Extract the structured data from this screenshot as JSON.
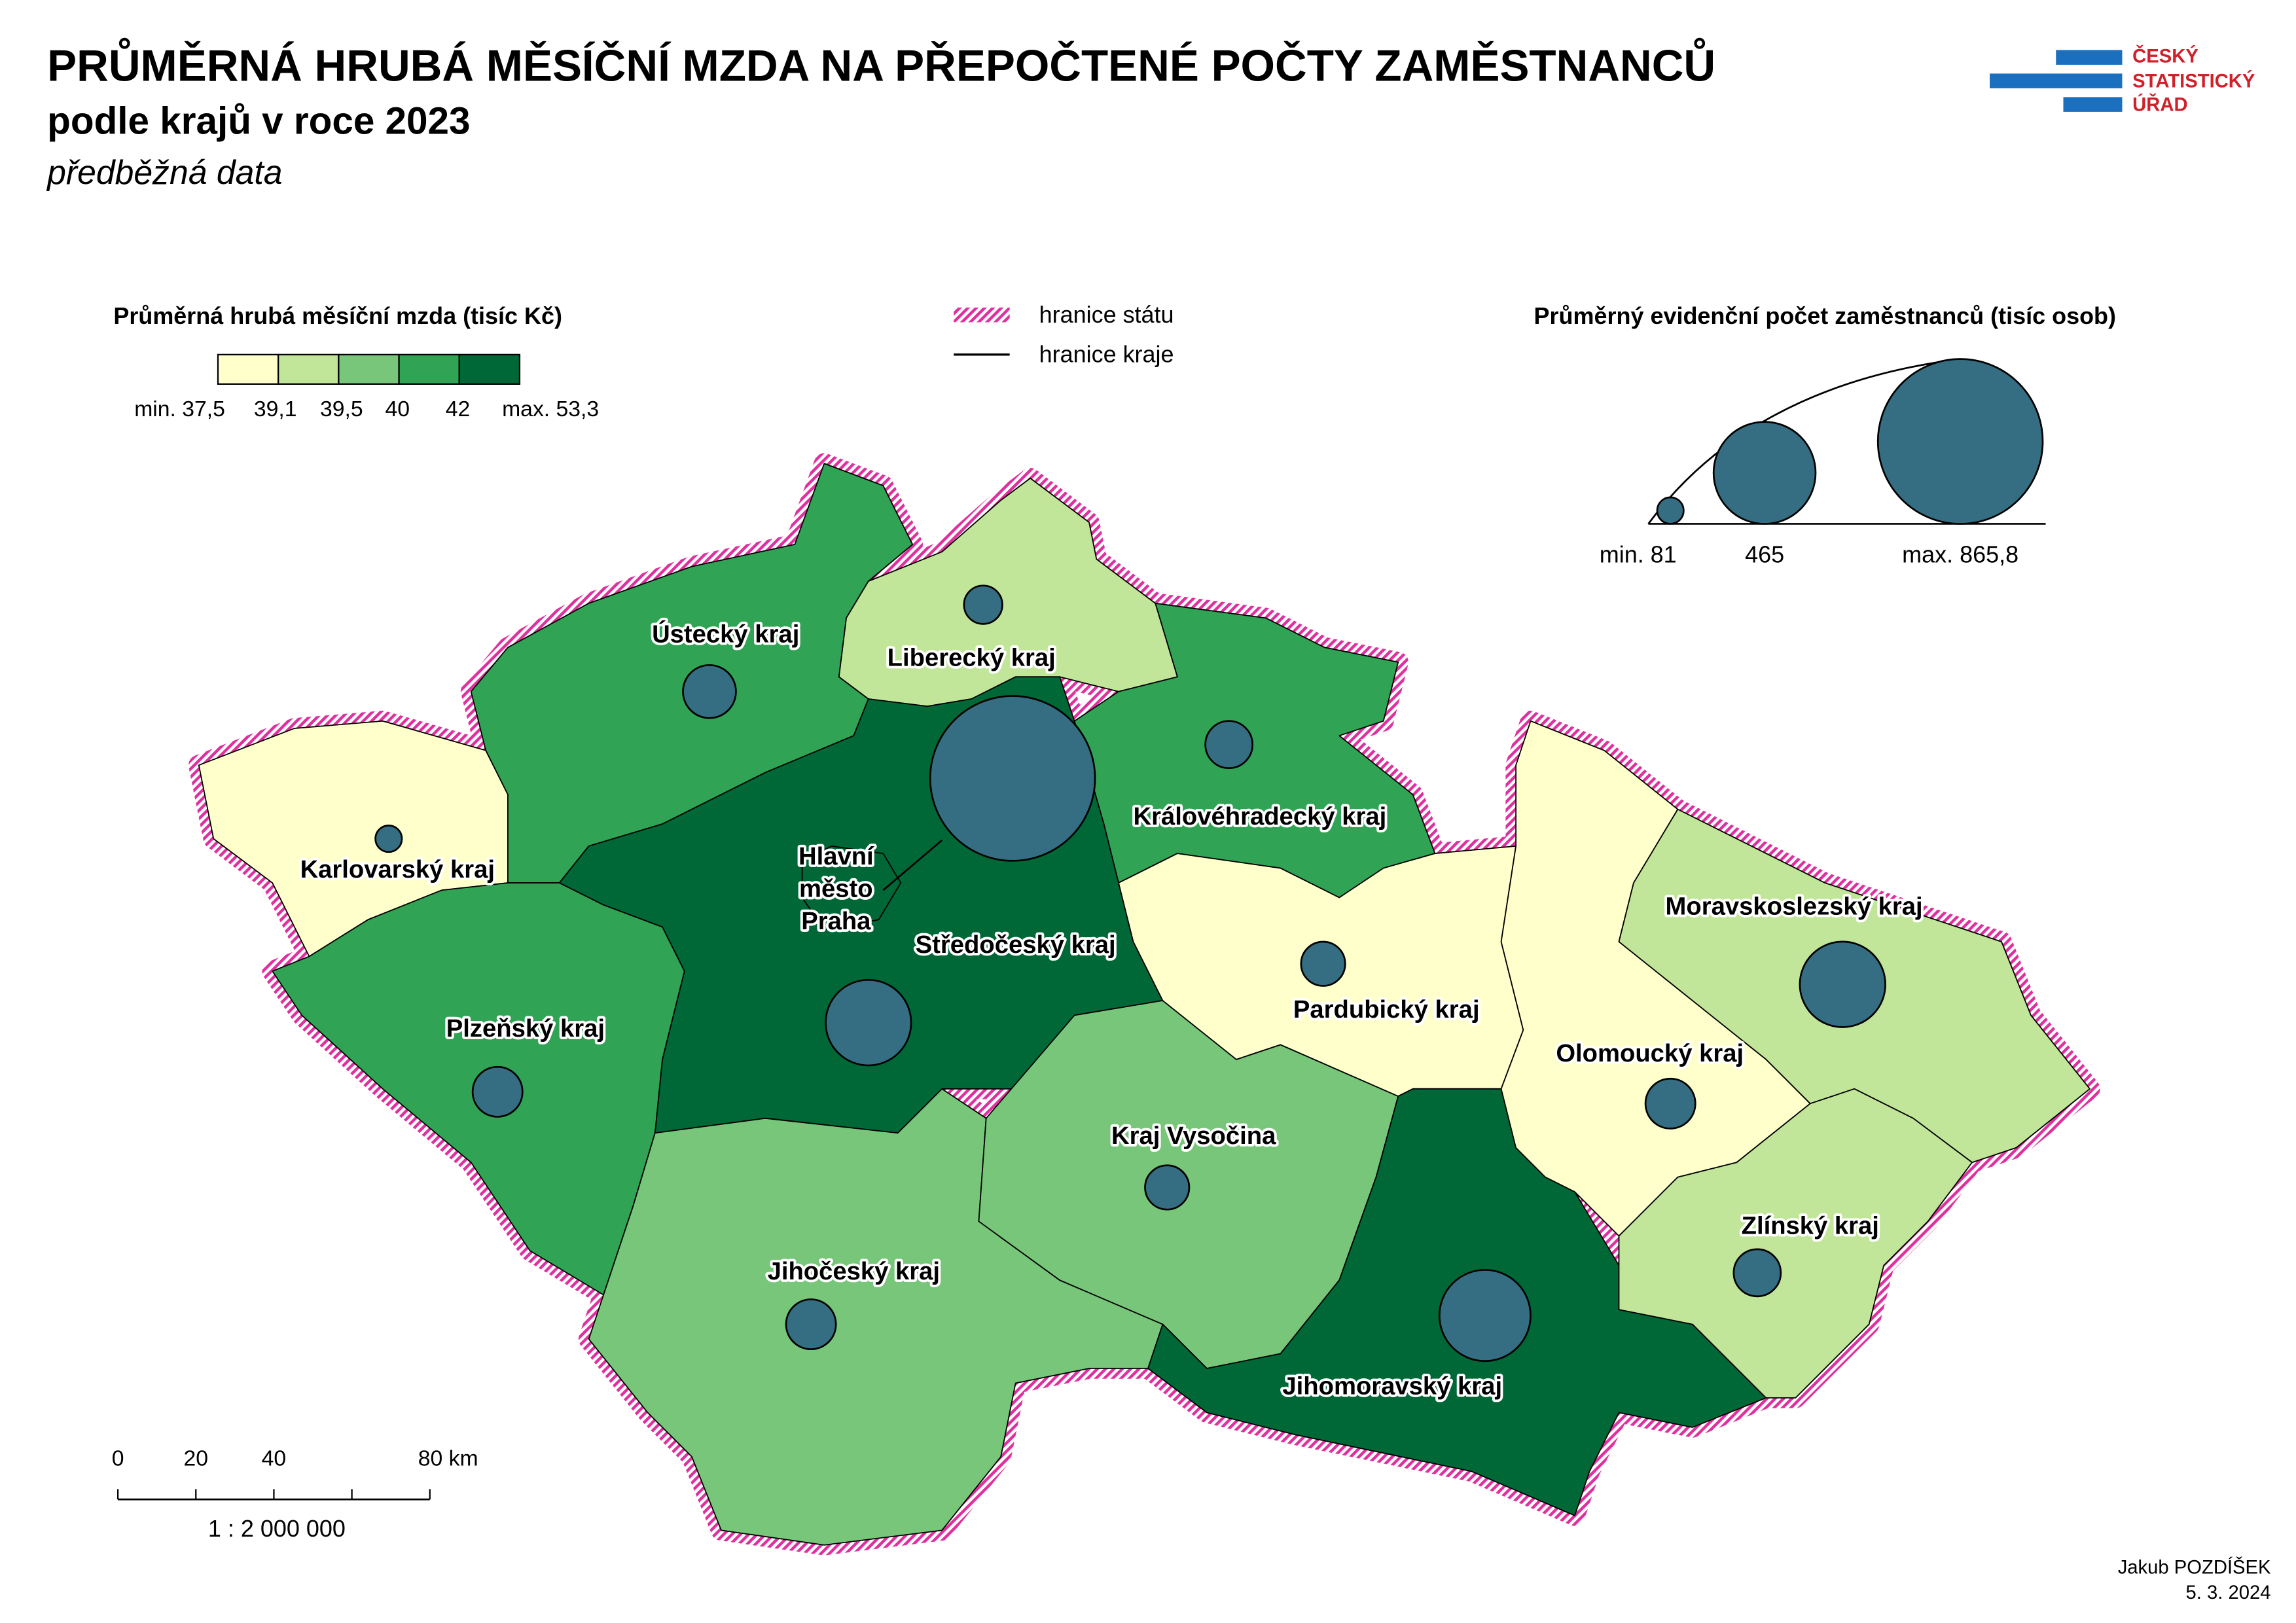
{
  "header": {
    "title": "PRŮMĚRNÁ HRUBÁ MĚSÍČNÍ MZDA NA PŘEPOČTENÉ POČTY ZAMĚSTNANCŮ",
    "subtitle": "podle krajů v roce 2023",
    "note": "předběžná data"
  },
  "logo": {
    "lines": [
      "ČESKÝ",
      "STATISTICKÝ",
      "ÚŘAD"
    ]
  },
  "wage_legend": {
    "title": "Průměrná hrubá měsíční mzda (tisíc Kč)",
    "colors": [
      "#ffffcc",
      "#c2e699",
      "#78c679",
      "#31a354",
      "#006837"
    ],
    "labels": [
      "min. 37,5",
      "39,1",
      "39,5",
      "40",
      "42",
      "max. 53,3"
    ]
  },
  "border_legend": {
    "state": "hranice státu",
    "region": "hranice kraje"
  },
  "size_legend": {
    "title": "Průměrný evidenční počet zaměstnanců (tisíc osob)",
    "items": [
      {
        "value": 81,
        "label": "min. 81"
      },
      {
        "value": 465,
        "label": "465"
      },
      {
        "value": 865.8,
        "label": "max. 865,8"
      }
    ]
  },
  "regions": [
    {
      "name": "Karlovarský kraj",
      "color": "#ffffcc",
      "employees": 81
    },
    {
      "name": "Ústecký kraj",
      "color": "#31a354",
      "employees": 199
    },
    {
      "name": "Liberecký kraj",
      "color": "#c2e699",
      "employees": 131
    },
    {
      "name": "Královéhradecký kraj",
      "color": "#31a354",
      "employees": 171
    },
    {
      "name": "Středočeský kraj",
      "color": "#006837",
      "employees": 370
    },
    {
      "name": "Hlavní město Praha",
      "label_lines": [
        "Hlavní",
        "město",
        "Praha"
      ],
      "color": "#006837",
      "employees": 865.8
    },
    {
      "name": "Plzeňský kraj",
      "color": "#31a354",
      "employees": 184
    },
    {
      "name": "Jihočeský kraj",
      "color": "#78c679",
      "employees": 184
    },
    {
      "name": "Kraj Vysočina",
      "color": "#78c679",
      "employees": 157
    },
    {
      "name": "Pardubický kraj",
      "color": "#ffffcc",
      "employees": 157
    },
    {
      "name": "Jihomoravský kraj",
      "color": "#006837",
      "employees": 402
    },
    {
      "name": "Olomoucký kraj",
      "color": "#ffffcc",
      "employees": 184
    },
    {
      "name": "Moravskoslezský kraj",
      "color": "#c2e699",
      "employees": 370
    },
    {
      "name": "Zlínský kraj",
      "color": "#c2e699",
      "employees": 171
    }
  ],
  "scale_bar": {
    "ticks": [
      "0",
      "20",
      "40",
      "80 km"
    ],
    "ratio": "1 : 2 000 000"
  },
  "footer": {
    "author": "Jakub POZDÍŠEK",
    "date": "5. 3. 2024"
  }
}
